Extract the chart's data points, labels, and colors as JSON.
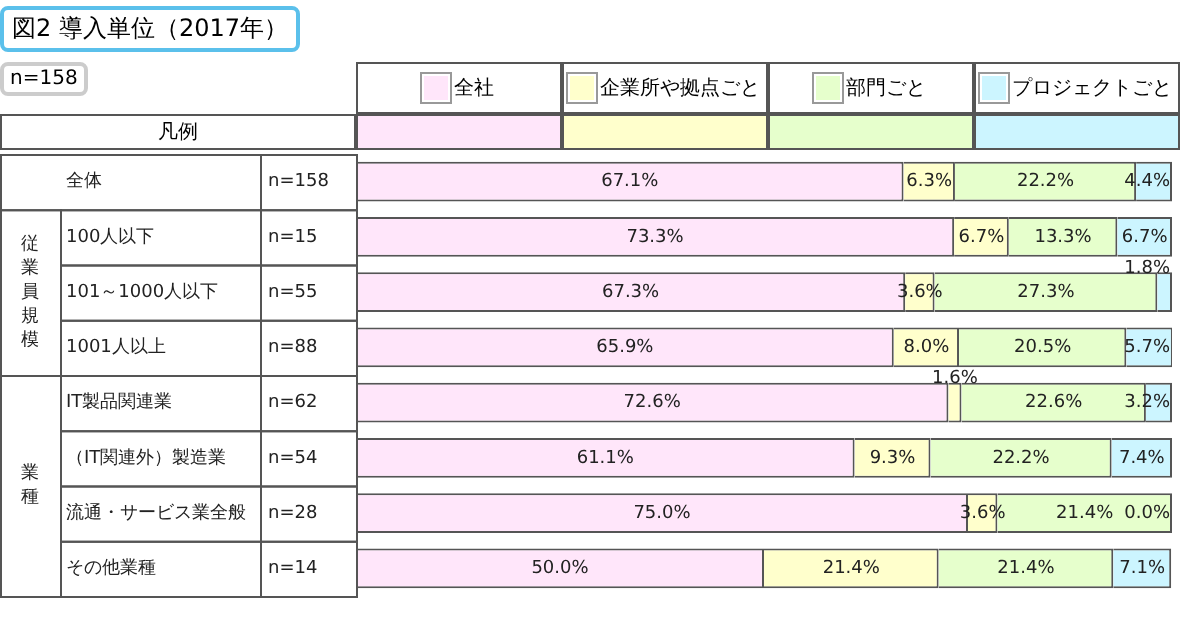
{
  "chart_data": {
    "type": "bar",
    "orientation": "horizontal",
    "stacked": true,
    "title": "図2 導入単位（2017年）",
    "legend_title": "凡例",
    "legend": "top",
    "tick_labels": "y",
    "annotations": [
      "n=158",
      "従業員規模",
      "業種"
    ],
    "categories": [
      "全体",
      "100人以下",
      "101～1000人以下",
      "1001人以上",
      "IT製品関連業",
      "（IT関連外）製造業",
      "流通・サービス業全般",
      "その他業種"
    ],
    "y2_categories": [
      "n=158",
      "n=15",
      "n=55",
      "n=88",
      "n=62",
      "n=54",
      "n=28",
      "n=14"
    ],
    "xlim": [
      0,
      100
    ],
    "series": [
      {
        "name": "全社",
        "color": "#ffe6fa",
        "values": [
          67.1,
          73.3,
          67.3,
          65.9,
          72.6,
          61.1,
          75.0,
          50.0
        ],
        "value_labels": [
          "67.1%",
          "73.3%",
          "67.3%",
          "65.9%",
          "72.6%",
          "61.1%",
          "75.0%",
          "50.0%"
        ]
      },
      {
        "name": "企業所や拠点ごと",
        "color": "#ffffcc",
        "values": [
          6.3,
          6.7,
          3.6,
          8.0,
          1.6,
          9.3,
          3.6,
          21.4
        ],
        "value_labels": [
          "6.3%",
          "6.7%",
          "3.6%",
          "8.0%",
          "1.6%",
          "9.3%",
          "3.6%",
          "21.4%"
        ]
      },
      {
        "name": "部門ごと",
        "color": "#e6ffcc",
        "values": [
          22.2,
          13.3,
          27.3,
          20.5,
          22.6,
          22.2,
          21.4,
          21.4
        ],
        "value_labels": [
          "22.2%",
          "13.3%",
          "27.3%",
          "20.5%",
          "22.6%",
          "22.2%",
          "21.4%",
          "21.4%"
        ]
      },
      {
        "name": "プロジェクトごと",
        "color": "#ccf5ff",
        "values": [
          4.4,
          6.7,
          1.8,
          5.7,
          3.2,
          7.4,
          0.0,
          7.1
        ],
        "value_labels": [
          "4.4%",
          "6.7%",
          "1.8%",
          "5.7%",
          "3.2%",
          "7.4%",
          "0.0%",
          "7.1%"
        ]
      }
    ]
  }
}
